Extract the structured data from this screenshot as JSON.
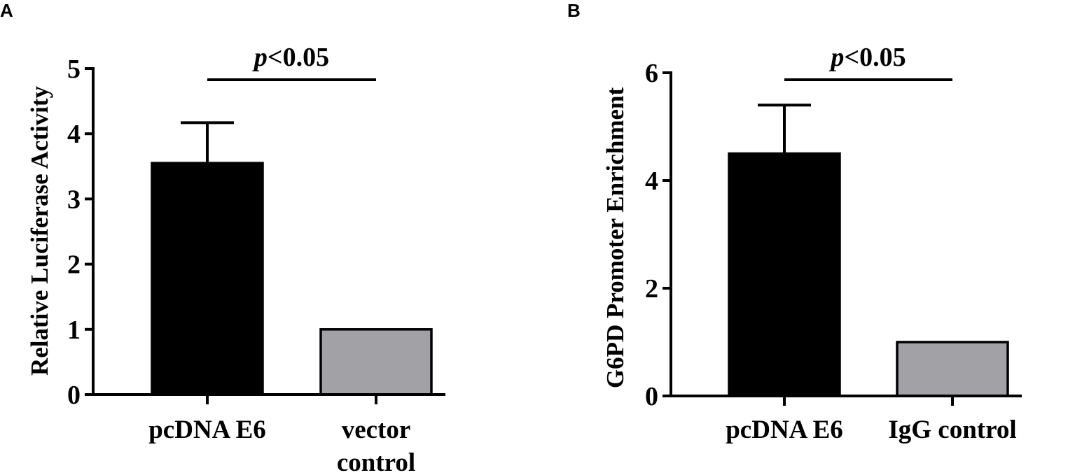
{
  "chart_data": [
    {
      "panel": "A",
      "type": "bar",
      "ylabel": "Relative Luciferase Activity",
      "ylim": [
        0,
        5
      ],
      "yticks": [
        "0",
        "1",
        "2",
        "3",
        "4",
        "5"
      ],
      "categories": [
        [
          "pcDNA E6"
        ],
        [
          "vector",
          "control"
        ]
      ],
      "values": [
        3.55,
        1.0
      ],
      "error_upper": [
        4.17,
        null
      ],
      "colors": [
        "#000000",
        "#a2a2a6"
      ],
      "significance": "p<0.05",
      "grid": false,
      "legend": "none"
    },
    {
      "panel": "B",
      "type": "bar",
      "ylabel": "G6PD Promoter Enrichment",
      "ylim": [
        0,
        6
      ],
      "yticks": [
        "0",
        "2",
        "4",
        "6"
      ],
      "categories": [
        [
          "pcDNA E6"
        ],
        [
          "IgG control"
        ]
      ],
      "values": [
        4.5,
        1.0
      ],
      "error_upper": [
        5.4,
        null
      ],
      "colors": [
        "#000000",
        "#a2a2a6"
      ],
      "significance": "p<0.05",
      "grid": false,
      "legend": "none"
    }
  ]
}
